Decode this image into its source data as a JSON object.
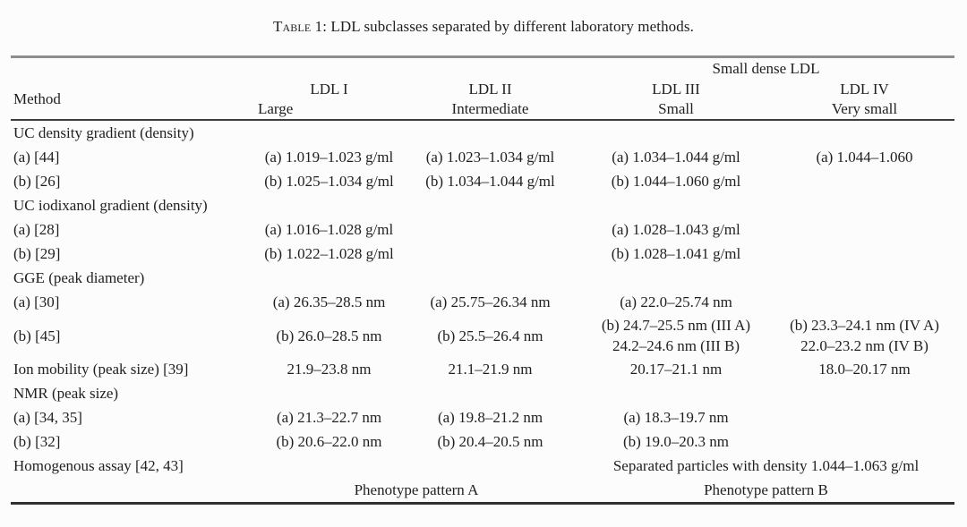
{
  "colors": {
    "background": "#fcfcfc",
    "text": "#1f1f1f",
    "rule_top": "#8d8d8d",
    "rule_header": "#3c3c3c",
    "rule_bottom": "#303030"
  },
  "caption": {
    "prefix": "Table 1:",
    "text": " LDL subclasses separated by different laboratory methods."
  },
  "table": {
    "header": {
      "method": "Method",
      "group_span": "Small dense LDL",
      "columns": [
        {
          "name": "LDL I",
          "sub": "Large"
        },
        {
          "name": "LDL II",
          "sub": "Intermediate"
        },
        {
          "name": "LDL III",
          "sub": "Small"
        },
        {
          "name": "LDL IV",
          "sub": "Very small"
        }
      ]
    },
    "rows": [
      {
        "cells": [
          {
            "t": "UC density gradient (density)"
          },
          null,
          null,
          null,
          null
        ]
      },
      {
        "cells": [
          {
            "t": "(a) [44]"
          },
          {
            "t": "(a) 1.019–1.023 g/ml"
          },
          {
            "t": "(a) 1.023–1.034 g/ml"
          },
          {
            "t": "(a) 1.034–1.044 g/ml"
          },
          {
            "t": "(a) 1.044–1.060"
          }
        ]
      },
      {
        "cells": [
          {
            "t": "(b) [26]"
          },
          {
            "t": "(b) 1.025–1.034 g/ml"
          },
          {
            "t": "(b) 1.034–1.044 g/ml"
          },
          {
            "t": "(b) 1.044–1.060 g/ml"
          },
          null
        ]
      },
      {
        "cells": [
          {
            "t": "UC iodixanol gradient (density)"
          },
          null,
          null,
          null,
          null
        ]
      },
      {
        "cells": [
          {
            "t": "(a) [28]"
          },
          {
            "t": "(a) 1.016–1.028 g/ml"
          },
          null,
          {
            "t": "(a) 1.028–1.043 g/ml"
          },
          null
        ]
      },
      {
        "cells": [
          {
            "t": "(b) [29]"
          },
          {
            "t": "(b) 1.022–1.028 g/ml"
          },
          null,
          {
            "t": "(b) 1.028–1.041 g/ml"
          },
          null
        ]
      },
      {
        "cells": [
          {
            "t": "GGE (peak diameter)"
          },
          null,
          null,
          null,
          null
        ]
      },
      {
        "cells": [
          {
            "t": "(a) [30]"
          },
          {
            "t": "(a) 26.35–28.5 nm"
          },
          {
            "t": "(a) 25.75–26.34 nm"
          },
          {
            "t": "(a) 22.0–25.74 nm"
          },
          null
        ]
      },
      {
        "two_line": true,
        "cells": [
          {
            "t": "(b) [45]"
          },
          {
            "t": "(b) 26.0–28.5 nm"
          },
          {
            "t": "(b) 25.5–26.4 nm"
          },
          {
            "l": [
              "(b) 24.7–25.5 nm (III A)",
              "24.2–24.6 nm (III B)"
            ]
          },
          {
            "l": [
              "(b) 23.3–24.1 nm (IV A)",
              "22.0–23.2 nm (IV B)"
            ]
          }
        ]
      },
      {
        "cells": [
          {
            "t": "Ion mobility (peak size) [39]"
          },
          {
            "t": "21.9–23.8 nm"
          },
          {
            "t": "21.1–21.9 nm"
          },
          {
            "t": "20.17–21.1 nm"
          },
          {
            "t": "18.0–20.17 nm"
          }
        ]
      },
      {
        "cells": [
          {
            "t": "NMR (peak size)"
          },
          null,
          null,
          null,
          null
        ]
      },
      {
        "cells": [
          {
            "t": "(a) [34, 35]"
          },
          {
            "t": "(a) 21.3–22.7 nm"
          },
          {
            "t": "(a) 19.8–21.2 nm"
          },
          {
            "t": "(a) 18.3–19.7 nm"
          },
          null
        ]
      },
      {
        "cells": [
          {
            "t": "(b) [32]"
          },
          {
            "t": "(b) 20.6–22.0 nm"
          },
          {
            "t": "(b) 20.4–20.5 nm"
          },
          {
            "t": "(b) 19.0–20.3 nm"
          },
          null
        ]
      },
      {
        "cells": [
          {
            "t": "Homogenous assay [42, 43]"
          },
          null,
          null,
          {
            "t": "Separated particles with density 1.044–1.063 g/ml",
            "span": 2
          }
        ]
      },
      {
        "phenotype": true,
        "cells": [
          null,
          {
            "t": "Phenotype pattern A",
            "span": 2
          },
          {
            "t": "Phenotype pattern B",
            "span": 2
          }
        ]
      }
    ]
  }
}
